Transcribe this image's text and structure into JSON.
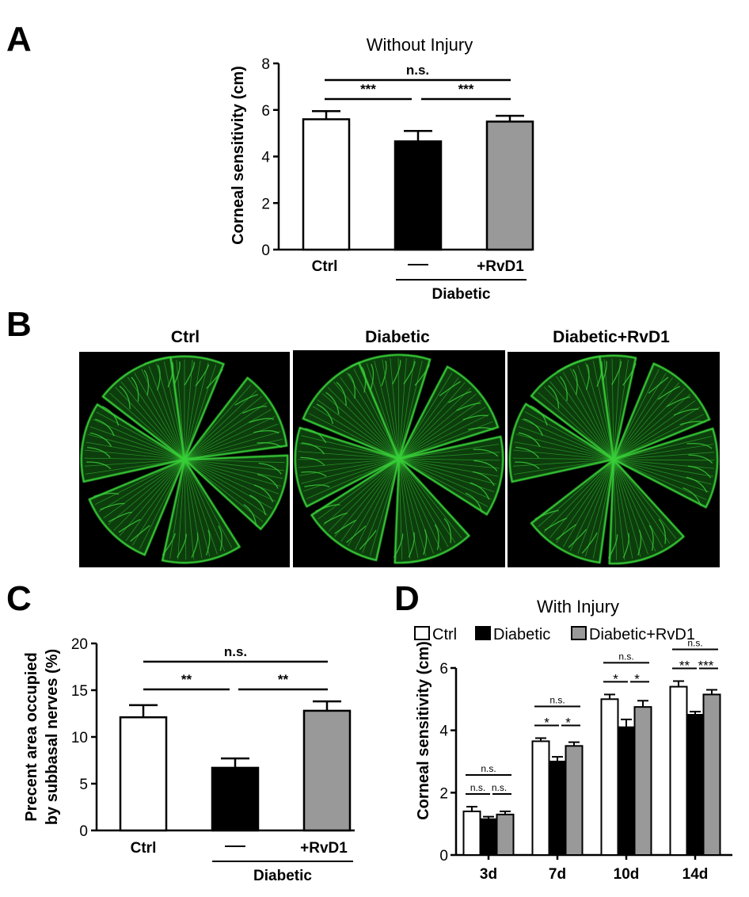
{
  "panels": {
    "A": "A",
    "B": "B",
    "C": "C",
    "D": "D"
  },
  "colors": {
    "ctrl": "#ffffff",
    "diabetic": "#000000",
    "rvd1": "#999999",
    "nerve_green": "#39d039",
    "micro_background": "#000000"
  },
  "chart_data": [
    {
      "id": "A",
      "type": "bar",
      "title": "Without Injury",
      "ylabel": "Corneal sensitivity (cm)",
      "ylim": [
        0,
        8
      ],
      "yticks": [
        "0",
        "2",
        "4",
        "6",
        "8"
      ],
      "categories": [
        "Ctrl",
        "—",
        "+RvD1"
      ],
      "group_label": "Diabetic",
      "values": [
        5.6,
        4.65,
        5.5
      ],
      "errors": [
        0.35,
        0.45,
        0.25
      ],
      "comparisons": [
        {
          "from": 1,
          "to": 3,
          "label": "n.s."
        },
        {
          "from": 1,
          "to": 2,
          "label": "***"
        },
        {
          "from": 2,
          "to": 3,
          "label": "***"
        }
      ]
    },
    {
      "id": "C",
      "type": "bar",
      "ylabel": "Precent area occupied by subbasal nerves (%)",
      "ylabel_lines": [
        "Precent area occupied",
        "by subbasal nerves (%)"
      ],
      "ylim": [
        0,
        20
      ],
      "yticks": [
        "0",
        "5",
        "10",
        "15",
        "20"
      ],
      "categories": [
        "Ctrl",
        "—",
        "+RvD1"
      ],
      "group_label": "Diabetic",
      "values": [
        12.1,
        6.7,
        12.8
      ],
      "errors": [
        1.3,
        1.0,
        1.0
      ],
      "comparisons": [
        {
          "from": 1,
          "to": 3,
          "label": "n.s."
        },
        {
          "from": 1,
          "to": 2,
          "label": "**"
        },
        {
          "from": 2,
          "to": 3,
          "label": "**"
        }
      ]
    },
    {
      "id": "D",
      "type": "bar",
      "title": "With Injury",
      "ylabel": "Corneal sensitivity (cm)",
      "ylim": [
        0,
        6
      ],
      "yticks": [
        "0",
        "2",
        "4",
        "6"
      ],
      "categories": [
        "3d",
        "7d",
        "10d",
        "14d"
      ],
      "legend": [
        "Ctrl",
        "Diabetic",
        "Diabetic+RvD1"
      ],
      "series": [
        {
          "name": "Ctrl",
          "values": [
            1.4,
            3.65,
            5.0,
            5.4
          ],
          "errors": [
            0.15,
            0.1,
            0.15,
            0.18
          ]
        },
        {
          "name": "Diabetic",
          "values": [
            1.15,
            3.0,
            4.1,
            4.5
          ],
          "errors": [
            0.08,
            0.15,
            0.25,
            0.1
          ]
        },
        {
          "name": "Diabetic+RvD1",
          "values": [
            1.3,
            3.5,
            4.75,
            5.15
          ],
          "errors": [
            0.1,
            0.12,
            0.2,
            0.15
          ]
        }
      ],
      "significance": [
        {
          "top": "n.s.",
          "left": "n.s.",
          "right": "n.s."
        },
        {
          "top": "n.s.",
          "left": "*",
          "right": "*"
        },
        {
          "top": "n.s.",
          "left": "*",
          "right": "*"
        },
        {
          "top": "n.s.",
          "left": "**",
          "right": "***"
        }
      ]
    }
  ],
  "micrographs": {
    "labels": [
      "Ctrl",
      "Diabetic",
      "Diabetic+RvD1"
    ]
  }
}
